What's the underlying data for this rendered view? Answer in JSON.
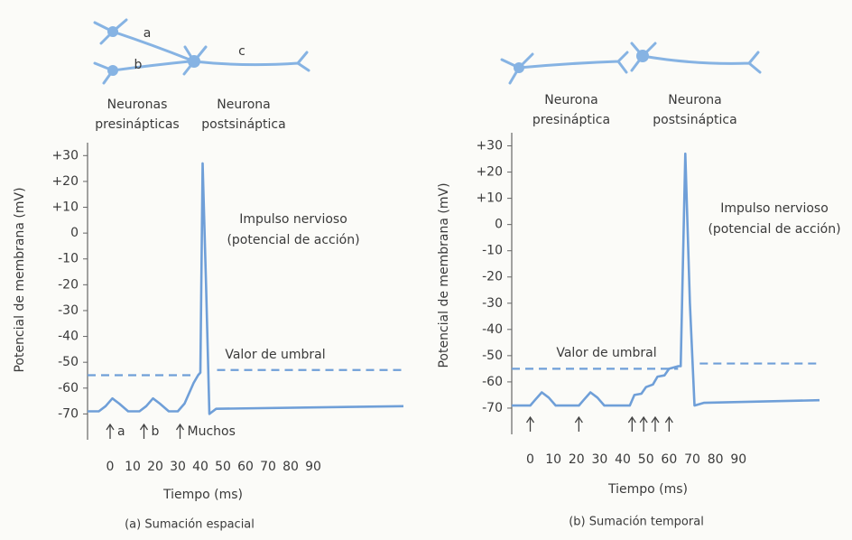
{
  "chart_data": [
    {
      "type": "line",
      "caption": "(a) Sumación espacial",
      "ylabel": "Potencial de membrana (mV)",
      "xlabel": "Tiempo (ms)",
      "annotation": [
        "Impulso nervioso",
        "(potencial de acción)"
      ],
      "neuron_letters": [
        "a",
        "b",
        "c"
      ],
      "presynaptic_label": [
        "Neuronas",
        "presinápticas"
      ],
      "postsynaptic_label": [
        "Neurona",
        "postsináptica"
      ],
      "xlim": [
        -10,
        130
      ],
      "ylim": [
        -80,
        35
      ],
      "xticks": [
        0,
        10,
        20,
        30,
        40,
        50,
        60,
        70,
        80,
        90
      ],
      "yticks": [
        {
          "value": 30,
          "label": "+30"
        },
        {
          "value": 20,
          "label": "+20"
        },
        {
          "value": 10,
          "label": "+10"
        },
        0,
        -10,
        -20,
        -30,
        -40,
        -50,
        -60,
        -70
      ],
      "x": [
        -10,
        -5,
        -2,
        1,
        4,
        8,
        13,
        16,
        19,
        22,
        26,
        30,
        33,
        35,
        37,
        39,
        40,
        41,
        42.5,
        44,
        47,
        130
      ],
      "series": [
        {
          "color": "#6f9fd8",
          "values": [
            -69,
            -69,
            -67,
            -64,
            -66,
            -69,
            -69,
            -67,
            -64,
            -66,
            -69,
            -69,
            -66,
            -62,
            -58,
            -55,
            -54,
            27,
            -20,
            -70,
            -68,
            -67
          ]
        }
      ],
      "threshold": {
        "label": "Valor de umbral",
        "values": [
          -55,
          -53
        ]
      },
      "stimuli": [
        {
          "x": 0,
          "label": "a"
        },
        {
          "x": 15,
          "label": "b"
        },
        {
          "x": 31,
          "label": "Muchos"
        }
      ]
    },
    {
      "type": "line",
      "caption": "(b) Sumación temporal",
      "ylabel": "Potencial de membrana (mV)",
      "xlabel": "Tiempo (ms)",
      "annotation": [
        "Impulso nervioso",
        "(potencial de acción)"
      ],
      "presynaptic_label": [
        "Neurona",
        "presináptica"
      ],
      "postsynaptic_label": [
        "Neurona",
        "postsináptica"
      ],
      "xlim": [
        -8,
        125
      ],
      "ylim": [
        -80,
        35
      ],
      "xticks": [
        0,
        10,
        20,
        30,
        40,
        50,
        60,
        70,
        80,
        90
      ],
      "yticks": [
        {
          "value": 30,
          "label": "+30"
        },
        {
          "value": 20,
          "label": "+20"
        },
        {
          "value": 10,
          "label": "+10"
        },
        0,
        -10,
        -20,
        -30,
        -40,
        -50,
        -60,
        -70
      ],
      "x": [
        -8,
        0,
        2,
        5,
        8,
        11,
        21,
        23,
        26,
        29,
        32,
        43,
        45,
        48,
        50,
        53,
        55,
        58,
        60,
        64,
        65,
        67,
        69,
        71,
        75,
        125
      ],
      "series": [
        {
          "color": "#6f9fd8",
          "values": [
            -69,
            -69,
            -67,
            -64,
            -66,
            -69,
            -69,
            -67,
            -64,
            -66,
            -69,
            -69,
            -65,
            -64.5,
            -62,
            -61,
            -58,
            -57.5,
            -55,
            -54,
            -54,
            27,
            -30,
            -69,
            -68,
            -67
          ]
        }
      ],
      "threshold": {
        "label": "Valor de umbral",
        "values": [
          -55,
          -53
        ]
      },
      "stimuli": [
        0,
        21,
        44,
        49,
        54,
        60
      ]
    }
  ]
}
